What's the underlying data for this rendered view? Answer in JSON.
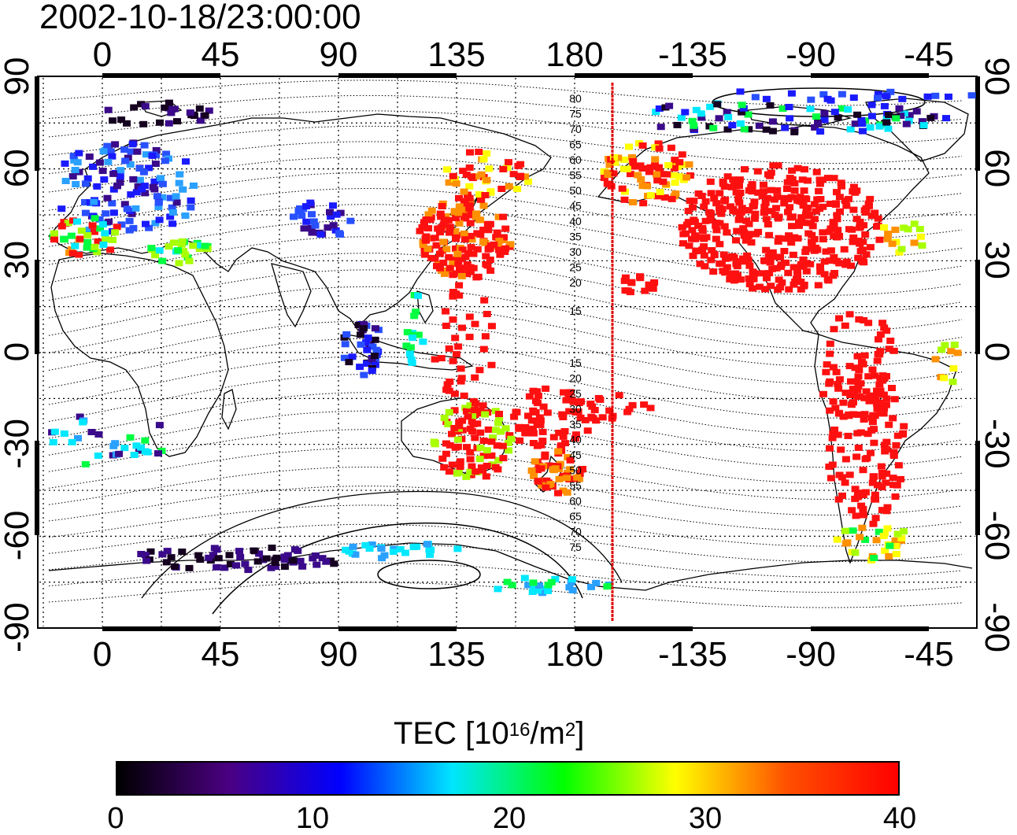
{
  "map": {
    "title": "2002-10-18/23:00:00",
    "x_tick_labels": [
      "0",
      "45",
      "90",
      "135",
      "180",
      "-135",
      "-90",
      "-45"
    ],
    "y_tick_labels": [
      "90",
      "60",
      "30",
      "0",
      "-30",
      "-60",
      "-90"
    ],
    "northern_contour_labels": [
      "80",
      "75",
      "70",
      "65",
      "60",
      "55",
      "50",
      "45",
      "40",
      "35",
      "30",
      "25",
      "20",
      "15"
    ],
    "southern_contour_labels": [
      "15",
      "20",
      "25",
      "30",
      "35",
      "40",
      "45",
      "50",
      "55",
      "60",
      "65",
      "70",
      "75"
    ],
    "highlight_line_color": "#e00000"
  },
  "colorbar": {
    "title_prefix": "TEC  [10",
    "title_exponent": "16",
    "title_mid": "/m",
    "title_exponent2": "2",
    "title_suffix": "]",
    "tick_labels": [
      "0",
      "10",
      "20",
      "30",
      "40"
    ],
    "colors": [
      "#000000",
      "#4b0082",
      "#0000ff",
      "#00e5ff",
      "#00ff00",
      "#ffff00",
      "#ff5000",
      "#ff0000"
    ]
  }
}
